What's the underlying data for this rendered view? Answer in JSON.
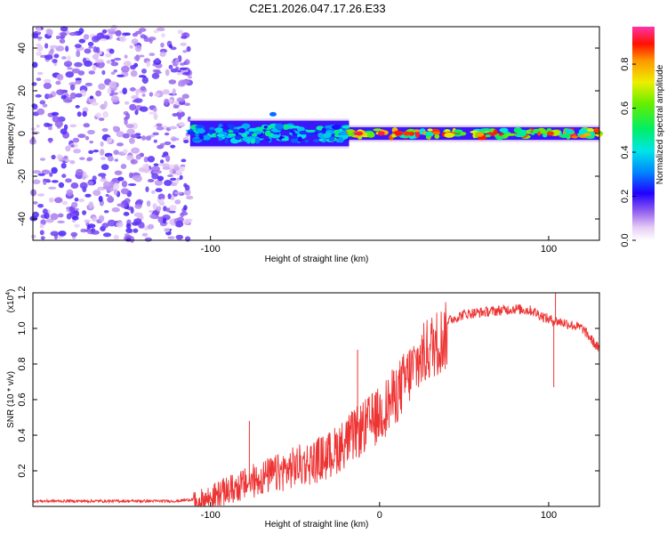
{
  "figure": {
    "title": "C2E1.2026.047.17.26.E33"
  },
  "chart_data": [
    {
      "type": "heatmap",
      "title": "C2E1.2026.047.17.26.E33",
      "xlabel": "Height of straight line (km)",
      "ylabel": "Frequency (Hz)",
      "xlim": [
        -205,
        130
      ],
      "ylim": [
        -50,
        50
      ],
      "x_ticks": [
        -100,
        100
      ],
      "y_ticks": [
        -40,
        -20,
        0,
        20,
        40
      ],
      "x_tick_labels": [
        "-100",
        "100"
      ],
      "y_tick_labels": [
        "-40",
        "-20",
        "0",
        "20",
        "40"
      ],
      "colorbar": {
        "label": "Normalized spectral amplitude",
        "range": [
          0,
          0.97
        ],
        "ticks": [
          0.0,
          0.2,
          0.4,
          0.6,
          0.8
        ],
        "tick_labels": [
          "0.0",
          "0.2",
          "0.4",
          "0.6",
          "0.8"
        ]
      },
      "regions": [
        {
          "name": "noise",
          "x_range": [
            -205,
            -112
          ],
          "freq_range": [
            -50,
            50
          ],
          "amplitude_range": [
            0.05,
            0.2
          ]
        },
        {
          "name": "broad-band",
          "x_range": [
            -112,
            -18
          ],
          "center_freq": 0,
          "half_width_hz": 6,
          "amplitude_range": [
            0.2,
            0.5
          ]
        },
        {
          "name": "narrow-band",
          "x_range": [
            -18,
            130
          ],
          "center_freq": 0,
          "half_width_hz": 3,
          "amplitude_range": [
            0.4,
            0.97
          ]
        }
      ],
      "peaks": [
        {
          "x": -12,
          "freq": 0,
          "amplitude": 0.95
        },
        {
          "x": 1,
          "freq": 0,
          "amplitude": 0.95
        },
        {
          "x": 16,
          "freq": 0,
          "amplitude": 0.9
        },
        {
          "x": 101,
          "freq": 0,
          "amplitude": 0.9
        },
        {
          "x": -63,
          "freq": 9,
          "amplitude": 0.3
        }
      ]
    },
    {
      "type": "line",
      "xlabel": "Height of straight line (km)",
      "ylabel": "SNR (10 * v/v)",
      "y_multiplier": "(x10",
      "y_multiplier_exp": "4",
      "y_multiplier_close": ")",
      "xlim": [
        -205,
        130
      ],
      "ylim": [
        0,
        1.2
      ],
      "x_ticks": [
        -100,
        0,
        100
      ],
      "y_ticks": [
        0.2,
        0.4,
        0.6,
        0.8,
        1.0,
        1.2
      ],
      "x_tick_labels": [
        "-100",
        "0",
        "100"
      ],
      "y_tick_labels": [
        "0.2",
        "0.4",
        "0.6",
        "0.8",
        "1.0",
        "1.2"
      ],
      "series": [
        {
          "name": "SNR",
          "color": "#ee3333",
          "x": [
            -205,
            -180,
            -150,
            -120,
            -110,
            -100,
            -90,
            -80,
            -70,
            -60,
            -50,
            -40,
            -30,
            -20,
            -10,
            0,
            10,
            20,
            30,
            40,
            50,
            60,
            70,
            80,
            90,
            100,
            110,
            120,
            130
          ],
          "y": [
            0.03,
            0.03,
            0.03,
            0.03,
            0.04,
            0.08,
            0.12,
            0.16,
            0.2,
            0.23,
            0.27,
            0.3,
            0.34,
            0.42,
            0.5,
            0.58,
            0.7,
            0.85,
            0.97,
            1.04,
            1.08,
            1.09,
            1.1,
            1.11,
            1.1,
            1.05,
            1.03,
            1.0,
            0.88
          ]
        }
      ],
      "annotations": [
        {
          "x": 104,
          "y": 1.2,
          "text": "spike"
        },
        {
          "x": 103,
          "y": 0.67,
          "text": "dip"
        },
        {
          "x": -13,
          "y": 0.88,
          "text": "spike"
        },
        {
          "x": -77,
          "y": 0.48,
          "text": "spike"
        }
      ]
    }
  ]
}
